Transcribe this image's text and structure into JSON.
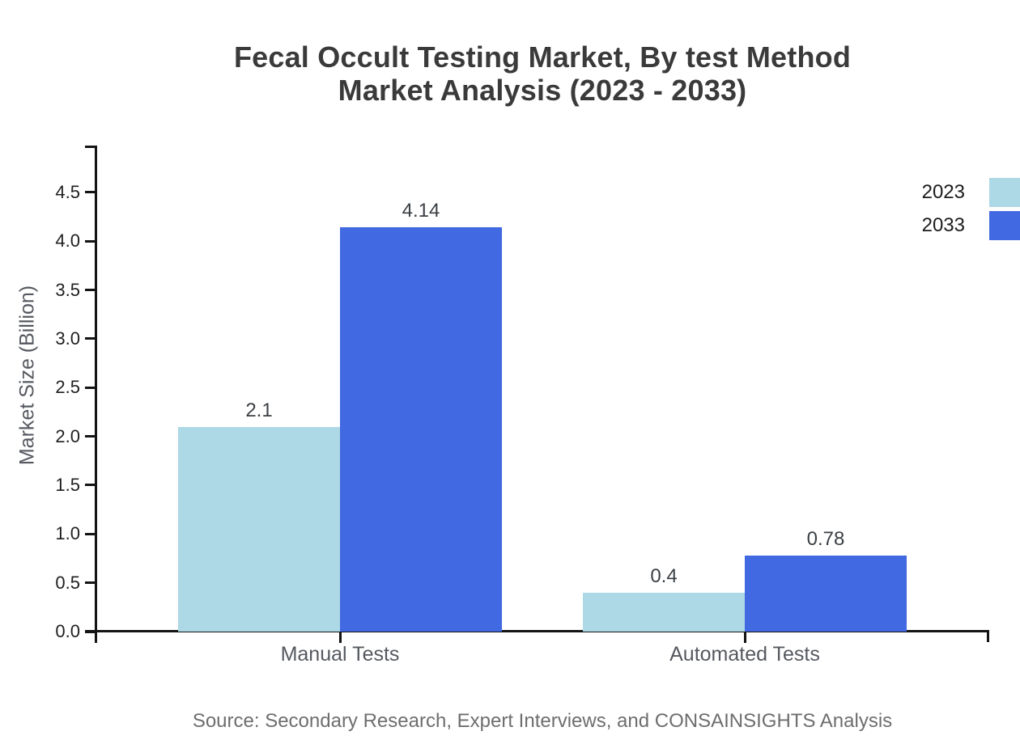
{
  "title": {
    "line1": "Fecal Occult Testing Market, By test Method",
    "line2": "Market Analysis (2023 - 2033)"
  },
  "source_note": "Source: Secondary Research, Expert Interviews, and CONSAINSIGHTS Analysis",
  "chart_data": {
    "type": "bar",
    "title": "Fecal Occult Testing Market, By test Method Market Analysis (2023 - 2033)",
    "categories": [
      "Manual Tests",
      "Automated Tests"
    ],
    "series": [
      {
        "name": "2023",
        "color": "#ADD8E6",
        "values": [
          2.1,
          0.4
        ],
        "value_labels": [
          "2.1",
          "0.4"
        ]
      },
      {
        "name": "2033",
        "color": "#4169E1",
        "values": [
          4.14,
          0.78
        ],
        "value_labels": [
          "4.14",
          "0.78"
        ]
      }
    ],
    "xlabel": "",
    "ylabel": "Market Size (Billion)",
    "ylim": [
      0,
      5
    ],
    "yticks": [
      "0.0",
      "0.5",
      "1.0",
      "1.5",
      "2.0",
      "2.5",
      "3.0",
      "3.5",
      "4.0",
      "4.5"
    ],
    "grid": false,
    "legend_position": "upper-right-outside",
    "colors": {
      "axis": "#141414",
      "title_text": "#3a3a3a",
      "muted_text": "#55595f",
      "source_text": "#6e6e6e"
    }
  }
}
